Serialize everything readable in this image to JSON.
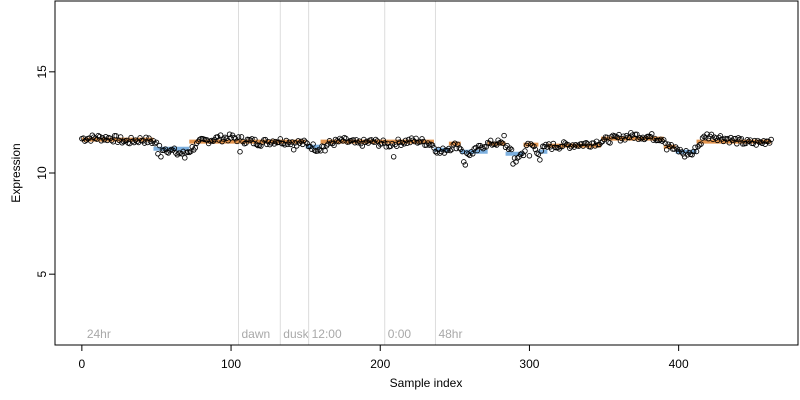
{
  "chart_data": {
    "type": "scatter",
    "xlabel": "Sample index",
    "ylabel": "Expression",
    "xlim": [
      -18,
      480
    ],
    "ylim": [
      1.5,
      18.5
    ],
    "x_ticks": [
      0,
      100,
      200,
      300,
      400
    ],
    "y_ticks": [
      5,
      10,
      15
    ],
    "grid": false,
    "phase_lines": [
      {
        "x": 105,
        "label": "dawn"
      },
      {
        "x": 133,
        "label": "dusk"
      },
      {
        "x": 152,
        "label": "12:00"
      },
      {
        "x": 203,
        "label": "0:00"
      },
      {
        "x": 237,
        "label": "48hr"
      }
    ],
    "corner_labels": [
      {
        "x": 2,
        "label": "24hr"
      }
    ],
    "segments": [
      {
        "x0": 0,
        "x1": 48,
        "y": 11.65,
        "color": "#e08a3c"
      },
      {
        "x0": 48,
        "x1": 72,
        "y": 11.2,
        "color": "#6fa8dc"
      },
      {
        "x0": 72,
        "x1": 150,
        "y": 11.55,
        "color": "#e08a3c"
      },
      {
        "x0": 150,
        "x1": 160,
        "y": 11.3,
        "color": "#6fa8dc"
      },
      {
        "x0": 160,
        "x1": 236,
        "y": 11.55,
        "color": "#e08a3c"
      },
      {
        "x0": 236,
        "x1": 246,
        "y": 11.15,
        "color": "#6fa8dc"
      },
      {
        "x0": 246,
        "x1": 254,
        "y": 11.45,
        "color": "#e08a3c"
      },
      {
        "x0": 254,
        "x1": 272,
        "y": 11.05,
        "color": "#6fa8dc"
      },
      {
        "x0": 272,
        "x1": 284,
        "y": 11.45,
        "color": "#e08a3c"
      },
      {
        "x0": 284,
        "x1": 296,
        "y": 10.95,
        "color": "#6fa8dc"
      },
      {
        "x0": 296,
        "x1": 306,
        "y": 11.4,
        "color": "#e08a3c"
      },
      {
        "x0": 306,
        "x1": 312,
        "y": 11.05,
        "color": "#6fa8dc"
      },
      {
        "x0": 312,
        "x1": 348,
        "y": 11.35,
        "color": "#e08a3c"
      },
      {
        "x0": 348,
        "x1": 390,
        "y": 11.7,
        "color": "#e08a3c"
      },
      {
        "x0": 390,
        "x1": 398,
        "y": 11.3,
        "color": "#e08a3c"
      },
      {
        "x0": 398,
        "x1": 412,
        "y": 11.05,
        "color": "#6fa8dc"
      },
      {
        "x0": 412,
        "x1": 462,
        "y": 11.55,
        "color": "#e08a3c"
      }
    ],
    "baseline": [
      [
        0,
        11.7
      ],
      [
        10,
        11.75
      ],
      [
        20,
        11.72
      ],
      [
        30,
        11.55
      ],
      [
        40,
        11.65
      ],
      [
        48,
        11.55
      ],
      [
        52,
        11.3
      ],
      [
        60,
        11.1
      ],
      [
        68,
        10.95
      ],
      [
        72,
        11.1
      ],
      [
        80,
        11.55
      ],
      [
        90,
        11.7
      ],
      [
        100,
        11.75
      ],
      [
        110,
        11.6
      ],
      [
        120,
        11.5
      ],
      [
        130,
        11.6
      ],
      [
        140,
        11.55
      ],
      [
        150,
        11.45
      ],
      [
        158,
        11.2
      ],
      [
        166,
        11.45
      ],
      [
        175,
        11.6
      ],
      [
        185,
        11.45
      ],
      [
        195,
        11.55
      ],
      [
        205,
        11.4
      ],
      [
        215,
        11.55
      ],
      [
        225,
        11.6
      ],
      [
        234,
        11.45
      ],
      [
        240,
        11.0
      ],
      [
        246,
        11.25
      ],
      [
        252,
        11.4
      ],
      [
        258,
        10.9
      ],
      [
        264,
        11.1
      ],
      [
        270,
        11.4
      ],
      [
        278,
        11.5
      ],
      [
        286,
        11.3
      ],
      [
        290,
        10.7
      ],
      [
        296,
        11.0
      ],
      [
        300,
        11.5
      ],
      [
        306,
        11.05
      ],
      [
        312,
        11.3
      ],
      [
        320,
        11.35
      ],
      [
        330,
        11.4
      ],
      [
        340,
        11.45
      ],
      [
        350,
        11.6
      ],
      [
        360,
        11.75
      ],
      [
        370,
        11.85
      ],
      [
        380,
        11.8
      ],
      [
        390,
        11.7
      ],
      [
        396,
        11.2
      ],
      [
        402,
        11.05
      ],
      [
        408,
        10.95
      ],
      [
        412,
        11.2
      ],
      [
        418,
        11.85
      ],
      [
        425,
        11.8
      ],
      [
        435,
        11.65
      ],
      [
        445,
        11.5
      ],
      [
        455,
        11.5
      ],
      [
        462,
        11.65
      ]
    ],
    "spikes": [
      [
        51,
        10.95
      ],
      [
        53,
        10.8
      ],
      [
        64,
        10.9
      ],
      [
        69,
        10.75
      ],
      [
        106,
        11.05
      ],
      [
        142,
        11.15
      ],
      [
        163,
        11.1
      ],
      [
        209,
        10.8
      ],
      [
        256,
        10.55
      ],
      [
        257,
        10.4
      ],
      [
        262,
        10.95
      ],
      [
        283,
        11.85
      ],
      [
        289,
        10.45
      ],
      [
        291,
        10.55
      ],
      [
        300,
        10.85
      ],
      [
        307,
        10.65
      ],
      [
        328,
        11.3
      ],
      [
        392,
        11.15
      ],
      [
        404,
        10.8
      ],
      [
        409,
        10.9
      ]
    ]
  }
}
